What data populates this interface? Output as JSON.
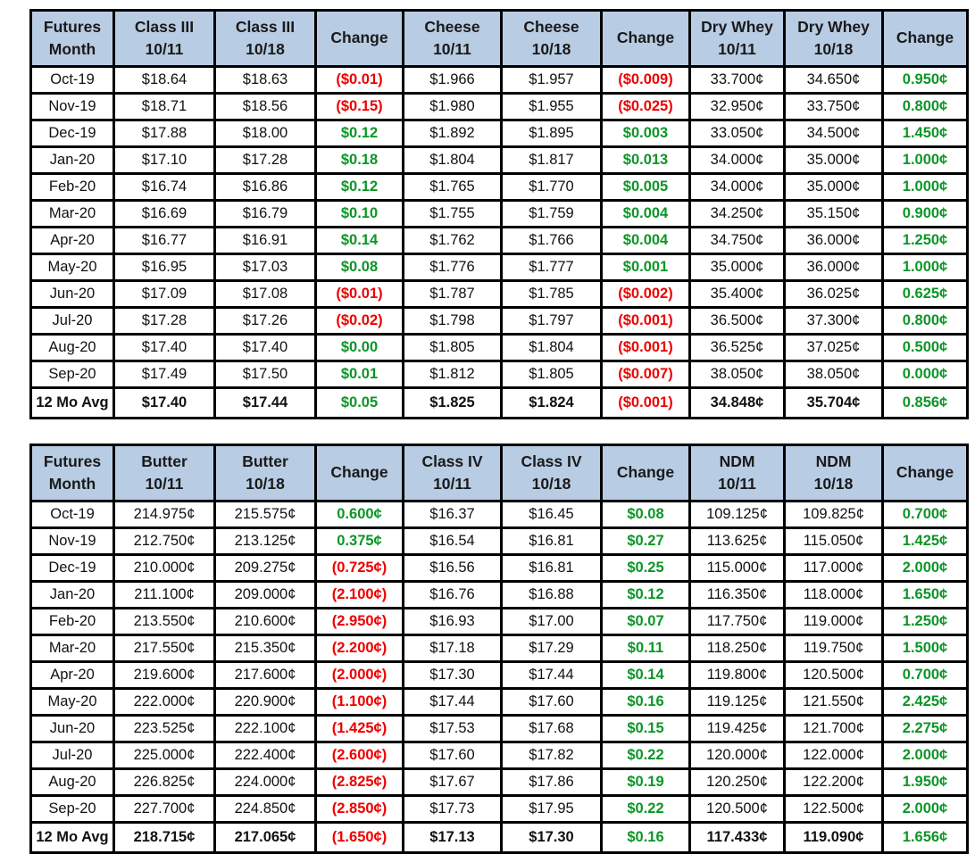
{
  "colors": {
    "header_bg": "#b8cce4",
    "positive": "#0a9626",
    "negative": "#ee0000",
    "border": "#000000"
  },
  "tables": [
    {
      "name": "class3-cheese-drywhey",
      "columns": [
        {
          "line1": "Futures",
          "line2": "Month"
        },
        {
          "line1": "Class III",
          "line2": "10/11"
        },
        {
          "line1": "Class III",
          "line2": "10/18"
        },
        {
          "line1": "Change",
          "line2": ""
        },
        {
          "line1": "Cheese",
          "line2": "10/11"
        },
        {
          "line1": "Cheese",
          "line2": "10/18"
        },
        {
          "line1": "Change",
          "line2": ""
        },
        {
          "line1": "Dry Whey",
          "line2": "10/11"
        },
        {
          "line1": "Dry Whey",
          "line2": "10/18"
        },
        {
          "line1": "Change",
          "line2": ""
        }
      ],
      "change_columns": [
        2,
        5,
        8
      ],
      "rows": [
        {
          "month": "Oct-19",
          "values": [
            "$18.64",
            "$18.63",
            "($0.01)",
            "$1.966",
            "$1.957",
            "($0.009)",
            "33.700¢",
            "34.650¢",
            "0.950¢"
          ]
        },
        {
          "month": "Nov-19",
          "values": [
            "$18.71",
            "$18.56",
            "($0.15)",
            "$1.980",
            "$1.955",
            "($0.025)",
            "32.950¢",
            "33.750¢",
            "0.800¢"
          ]
        },
        {
          "month": "Dec-19",
          "values": [
            "$17.88",
            "$18.00",
            "$0.12",
            "$1.892",
            "$1.895",
            "$0.003",
            "33.050¢",
            "34.500¢",
            "1.450¢"
          ]
        },
        {
          "month": "Jan-20",
          "values": [
            "$17.10",
            "$17.28",
            "$0.18",
            "$1.804",
            "$1.817",
            "$0.013",
            "34.000¢",
            "35.000¢",
            "1.000¢"
          ]
        },
        {
          "month": "Feb-20",
          "values": [
            "$16.74",
            "$16.86",
            "$0.12",
            "$1.765",
            "$1.770",
            "$0.005",
            "34.000¢",
            "35.000¢",
            "1.000¢"
          ]
        },
        {
          "month": "Mar-20",
          "values": [
            "$16.69",
            "$16.79",
            "$0.10",
            "$1.755",
            "$1.759",
            "$0.004",
            "34.250¢",
            "35.150¢",
            "0.900¢"
          ]
        },
        {
          "month": "Apr-20",
          "values": [
            "$16.77",
            "$16.91",
            "$0.14",
            "$1.762",
            "$1.766",
            "$0.004",
            "34.750¢",
            "36.000¢",
            "1.250¢"
          ]
        },
        {
          "month": "May-20",
          "values": [
            "$16.95",
            "$17.03",
            "$0.08",
            "$1.776",
            "$1.777",
            "$0.001",
            "35.000¢",
            "36.000¢",
            "1.000¢"
          ]
        },
        {
          "month": "Jun-20",
          "values": [
            "$17.09",
            "$17.08",
            "($0.01)",
            "$1.787",
            "$1.785",
            "($0.002)",
            "35.400¢",
            "36.025¢",
            "0.625¢"
          ]
        },
        {
          "month": "Jul-20",
          "values": [
            "$17.28",
            "$17.26",
            "($0.02)",
            "$1.798",
            "$1.797",
            "($0.001)",
            "36.500¢",
            "37.300¢",
            "0.800¢"
          ]
        },
        {
          "month": "Aug-20",
          "values": [
            "$17.40",
            "$17.40",
            "$0.00",
            "$1.805",
            "$1.804",
            "($0.001)",
            "36.525¢",
            "37.025¢",
            "0.500¢"
          ]
        },
        {
          "month": "Sep-20",
          "values": [
            "$17.49",
            "$17.50",
            "$0.01",
            "$1.812",
            "$1.805",
            "($0.007)",
            "38.050¢",
            "38.050¢",
            "0.000¢"
          ]
        }
      ],
      "average_row": {
        "month": "12 Mo Avg",
        "values": [
          "$17.40",
          "$17.44",
          "$0.05",
          "$1.825",
          "$1.824",
          "($0.001)",
          "34.848¢",
          "35.704¢",
          "0.856¢"
        ]
      }
    },
    {
      "name": "butter-class4-ndm",
      "columns": [
        {
          "line1": "Futures",
          "line2": "Month"
        },
        {
          "line1": "Butter",
          "line2": "10/11"
        },
        {
          "line1": "Butter",
          "line2": "10/18"
        },
        {
          "line1": "Change",
          "line2": ""
        },
        {
          "line1": "Class IV",
          "line2": "10/11"
        },
        {
          "line1": "Class IV",
          "line2": "10/18"
        },
        {
          "line1": "Change",
          "line2": ""
        },
        {
          "line1": "NDM",
          "line2": "10/11"
        },
        {
          "line1": "NDM",
          "line2": "10/18"
        },
        {
          "line1": "Change",
          "line2": ""
        }
      ],
      "change_columns": [
        2,
        5,
        8
      ],
      "rows": [
        {
          "month": "Oct-19",
          "values": [
            "214.975¢",
            "215.575¢",
            "0.600¢",
            "$16.37",
            "$16.45",
            "$0.08",
            "109.125¢",
            "109.825¢",
            "0.700¢"
          ]
        },
        {
          "month": "Nov-19",
          "values": [
            "212.750¢",
            "213.125¢",
            "0.375¢",
            "$16.54",
            "$16.81",
            "$0.27",
            "113.625¢",
            "115.050¢",
            "1.425¢"
          ]
        },
        {
          "month": "Dec-19",
          "values": [
            "210.000¢",
            "209.275¢",
            "(0.725¢)",
            "$16.56",
            "$16.81",
            "$0.25",
            "115.000¢",
            "117.000¢",
            "2.000¢"
          ]
        },
        {
          "month": "Jan-20",
          "values": [
            "211.100¢",
            "209.000¢",
            "(2.100¢)",
            "$16.76",
            "$16.88",
            "$0.12",
            "116.350¢",
            "118.000¢",
            "1.650¢"
          ]
        },
        {
          "month": "Feb-20",
          "values": [
            "213.550¢",
            "210.600¢",
            "(2.950¢)",
            "$16.93",
            "$17.00",
            "$0.07",
            "117.750¢",
            "119.000¢",
            "1.250¢"
          ]
        },
        {
          "month": "Mar-20",
          "values": [
            "217.550¢",
            "215.350¢",
            "(2.200¢)",
            "$17.18",
            "$17.29",
            "$0.11",
            "118.250¢",
            "119.750¢",
            "1.500¢"
          ]
        },
        {
          "month": "Apr-20",
          "values": [
            "219.600¢",
            "217.600¢",
            "(2.000¢)",
            "$17.30",
            "$17.44",
            "$0.14",
            "119.800¢",
            "120.500¢",
            "0.700¢"
          ]
        },
        {
          "month": "May-20",
          "values": [
            "222.000¢",
            "220.900¢",
            "(1.100¢)",
            "$17.44",
            "$17.60",
            "$0.16",
            "119.125¢",
            "121.550¢",
            "2.425¢"
          ]
        },
        {
          "month": "Jun-20",
          "values": [
            "223.525¢",
            "222.100¢",
            "(1.425¢)",
            "$17.53",
            "$17.68",
            "$0.15",
            "119.425¢",
            "121.700¢",
            "2.275¢"
          ]
        },
        {
          "month": "Jul-20",
          "values": [
            "225.000¢",
            "222.400¢",
            "(2.600¢)",
            "$17.60",
            "$17.82",
            "$0.22",
            "120.000¢",
            "122.000¢",
            "2.000¢"
          ]
        },
        {
          "month": "Aug-20",
          "values": [
            "226.825¢",
            "224.000¢",
            "(2.825¢)",
            "$17.67",
            "$17.86",
            "$0.19",
            "120.250¢",
            "122.200¢",
            "1.950¢"
          ]
        },
        {
          "month": "Sep-20",
          "values": [
            "227.700¢",
            "224.850¢",
            "(2.850¢)",
            "$17.73",
            "$17.95",
            "$0.22",
            "120.500¢",
            "122.500¢",
            "2.000¢"
          ]
        }
      ],
      "average_row": {
        "month": "12 Mo Avg",
        "values": [
          "218.715¢",
          "217.065¢",
          "(1.650¢)",
          "$17.13",
          "$17.30",
          "$0.16",
          "117.433¢",
          "119.090¢",
          "1.656¢"
        ]
      }
    }
  ]
}
